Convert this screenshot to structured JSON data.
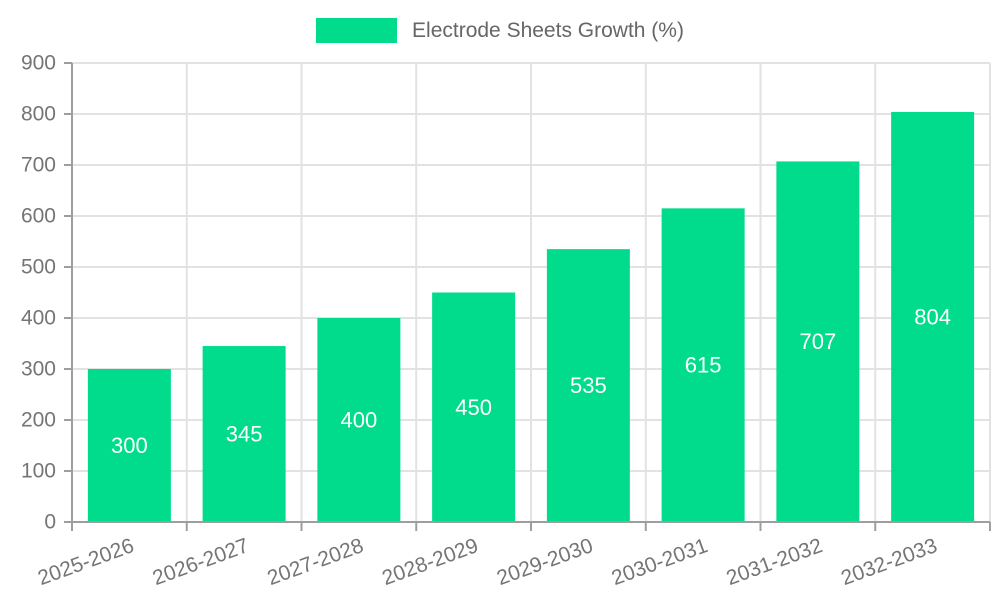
{
  "chart_data": {
    "type": "bar",
    "title": "",
    "legend": {
      "position": "top",
      "entries": [
        "Electrode Sheets Growth (%)"
      ]
    },
    "categories": [
      "2025-2026",
      "2026-2027",
      "2027-2028",
      "2028-2029",
      "2029-2030",
      "2030-2031",
      "2031-2032",
      "2032-2033"
    ],
    "series": [
      {
        "name": "Electrode Sheets Growth (%)",
        "values": [
          300,
          345,
          400,
          450,
          535,
          615,
          707,
          804
        ]
      }
    ],
    "xlabel": "",
    "ylabel": "",
    "ylim": [
      0,
      900
    ],
    "ytick_step": 100,
    "yticks": [
      0,
      100,
      200,
      300,
      400,
      500,
      600,
      700,
      800,
      900
    ],
    "grid": true,
    "bar_labels_inside": true,
    "x_label_rotation_deg": -20,
    "colors": {
      "bar": "#00DC8C",
      "bar_value_text": "#ffffff",
      "axis_line": "#9e9e9e",
      "grid_line": "#e2e2e2",
      "tick_text": "#757575",
      "legend_text": "#666666"
    }
  }
}
